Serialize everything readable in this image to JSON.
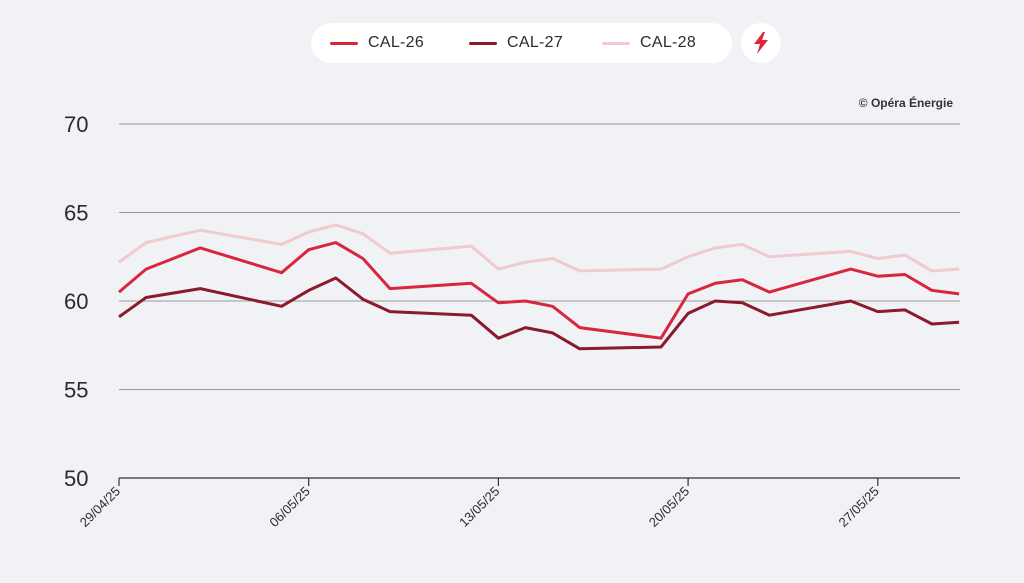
{
  "legend": {
    "items": [
      {
        "label": "CAL-26",
        "color": "#d7263d"
      },
      {
        "label": "CAL-27",
        "color": "#8b1a2b"
      },
      {
        "label": "CAL-28",
        "color": "#f1c9cf"
      }
    ],
    "icon": "lightning-bolt-icon"
  },
  "credit": "© Opéra Énergie",
  "chart_data": {
    "type": "line",
    "ylim": [
      50,
      70
    ],
    "yticks": [
      "50",
      "55",
      "60",
      "65",
      "70"
    ],
    "xticks": [
      "29/04/25",
      "06/05/25",
      "13/05/25",
      "20/05/25",
      "27/05/25"
    ],
    "x": [
      "29/04/25",
      "30/04/25",
      "02/05/25",
      "05/05/25",
      "06/05/25",
      "07/05/25",
      "08/05/25",
      "09/05/25",
      "12/05/25",
      "13/05/25",
      "14/05/25",
      "15/05/25",
      "16/05/25",
      "19/05/25",
      "20/05/25",
      "21/05/25",
      "22/05/25",
      "23/05/25",
      "26/05/25",
      "27/05/25",
      "28/05/25",
      "29/05/25",
      "30/05/25"
    ],
    "series": [
      {
        "name": "CAL-26",
        "color": "#d7263d",
        "values": [
          60.5,
          61.8,
          63.0,
          61.6,
          62.9,
          63.3,
          62.4,
          60.7,
          61.0,
          59.9,
          60.0,
          59.7,
          58.5,
          57.9,
          60.4,
          61.0,
          61.2,
          60.5,
          61.8,
          61.4,
          61.5,
          60.6,
          60.4
        ]
      },
      {
        "name": "CAL-27",
        "color": "#8b1a2b",
        "values": [
          59.1,
          60.2,
          60.7,
          59.7,
          60.6,
          61.3,
          60.1,
          59.4,
          59.2,
          57.9,
          58.5,
          58.2,
          57.3,
          57.4,
          59.3,
          60.0,
          59.9,
          59.2,
          60.0,
          59.4,
          59.5,
          58.7,
          58.8
        ]
      },
      {
        "name": "CAL-28",
        "color": "#f1c9cf",
        "values": [
          62.2,
          63.3,
          64.0,
          63.2,
          63.9,
          64.3,
          63.8,
          62.7,
          63.1,
          61.8,
          62.2,
          62.4,
          61.7,
          61.8,
          62.5,
          63.0,
          63.2,
          62.5,
          62.8,
          62.4,
          62.6,
          61.7,
          61.8
        ]
      }
    ]
  }
}
